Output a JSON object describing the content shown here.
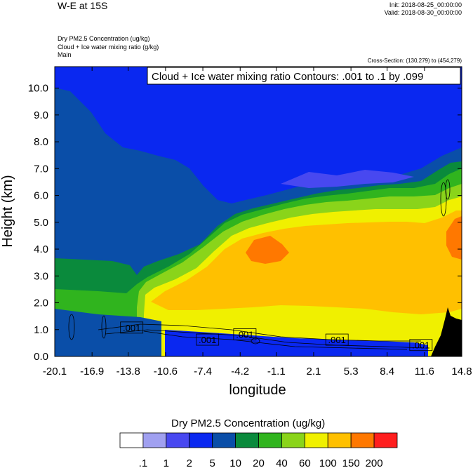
{
  "header": {
    "title": "W-E at 15S",
    "init": "Init: 2018-08-25_00:00:00",
    "valid": "Valid: 2018-08-30_00:00:00"
  },
  "fields": [
    "Dry PM2.5 Concentration   (ug/kg)",
    "Cloud + Ice water mixing ratio   (g/kg)",
    "Main"
  ],
  "cross_section": "Cross-Section: (130,279) to (454,279)",
  "chart_data": {
    "type": "heatmap",
    "title": "",
    "annotation": "Cloud + Ice water mixing ratio Contours: .001 to .1 by .099",
    "xlabel": "longitude",
    "ylabel": "Height (km)",
    "xlim": [
      -20.1,
      14.8
    ],
    "ylim": [
      0.0,
      10.8
    ],
    "x_ticks": [
      "-20.1",
      "-16.9",
      "-13.8",
      "-10.6",
      "-7.4",
      "-4.2",
      "-1.1",
      "2.1",
      "5.3",
      "8.4",
      "11.6",
      "14.8"
    ],
    "y_ticks": [
      "0.0",
      "1.0",
      "2.0",
      "3.0",
      "4.0",
      "5.0",
      "6.0",
      "7.0",
      "8.0",
      "9.0",
      "10.0"
    ],
    "contour_labels": [
      {
        "text": ".001",
        "x": -13.5,
        "y": 1.05
      },
      {
        "text": ".001",
        "x": -7.0,
        "y": 0.6
      },
      {
        "text": ".001",
        "x": -3.8,
        "y": 0.8
      },
      {
        "text": ".001",
        "x": 4.1,
        "y": 0.6
      },
      {
        "text": ".001",
        "x": 11.3,
        "y": 0.4
      }
    ],
    "colorbar": {
      "title": "Dry PM2.5 Concentration  (ug/kg)",
      "levels": [
        ".1",
        "1",
        "2",
        "5",
        "10",
        "20",
        "40",
        "60",
        "100",
        "150",
        "200"
      ],
      "colors": [
        "#ffffff",
        "#a0a0f0",
        "#4848f0",
        "#0a28f0",
        "#0a4ea8",
        "#0a8a3c",
        "#30b41e",
        "#8ad41a",
        "#f0f000",
        "#ffc000",
        "#ff7800",
        "#ff1e1e"
      ]
    }
  }
}
